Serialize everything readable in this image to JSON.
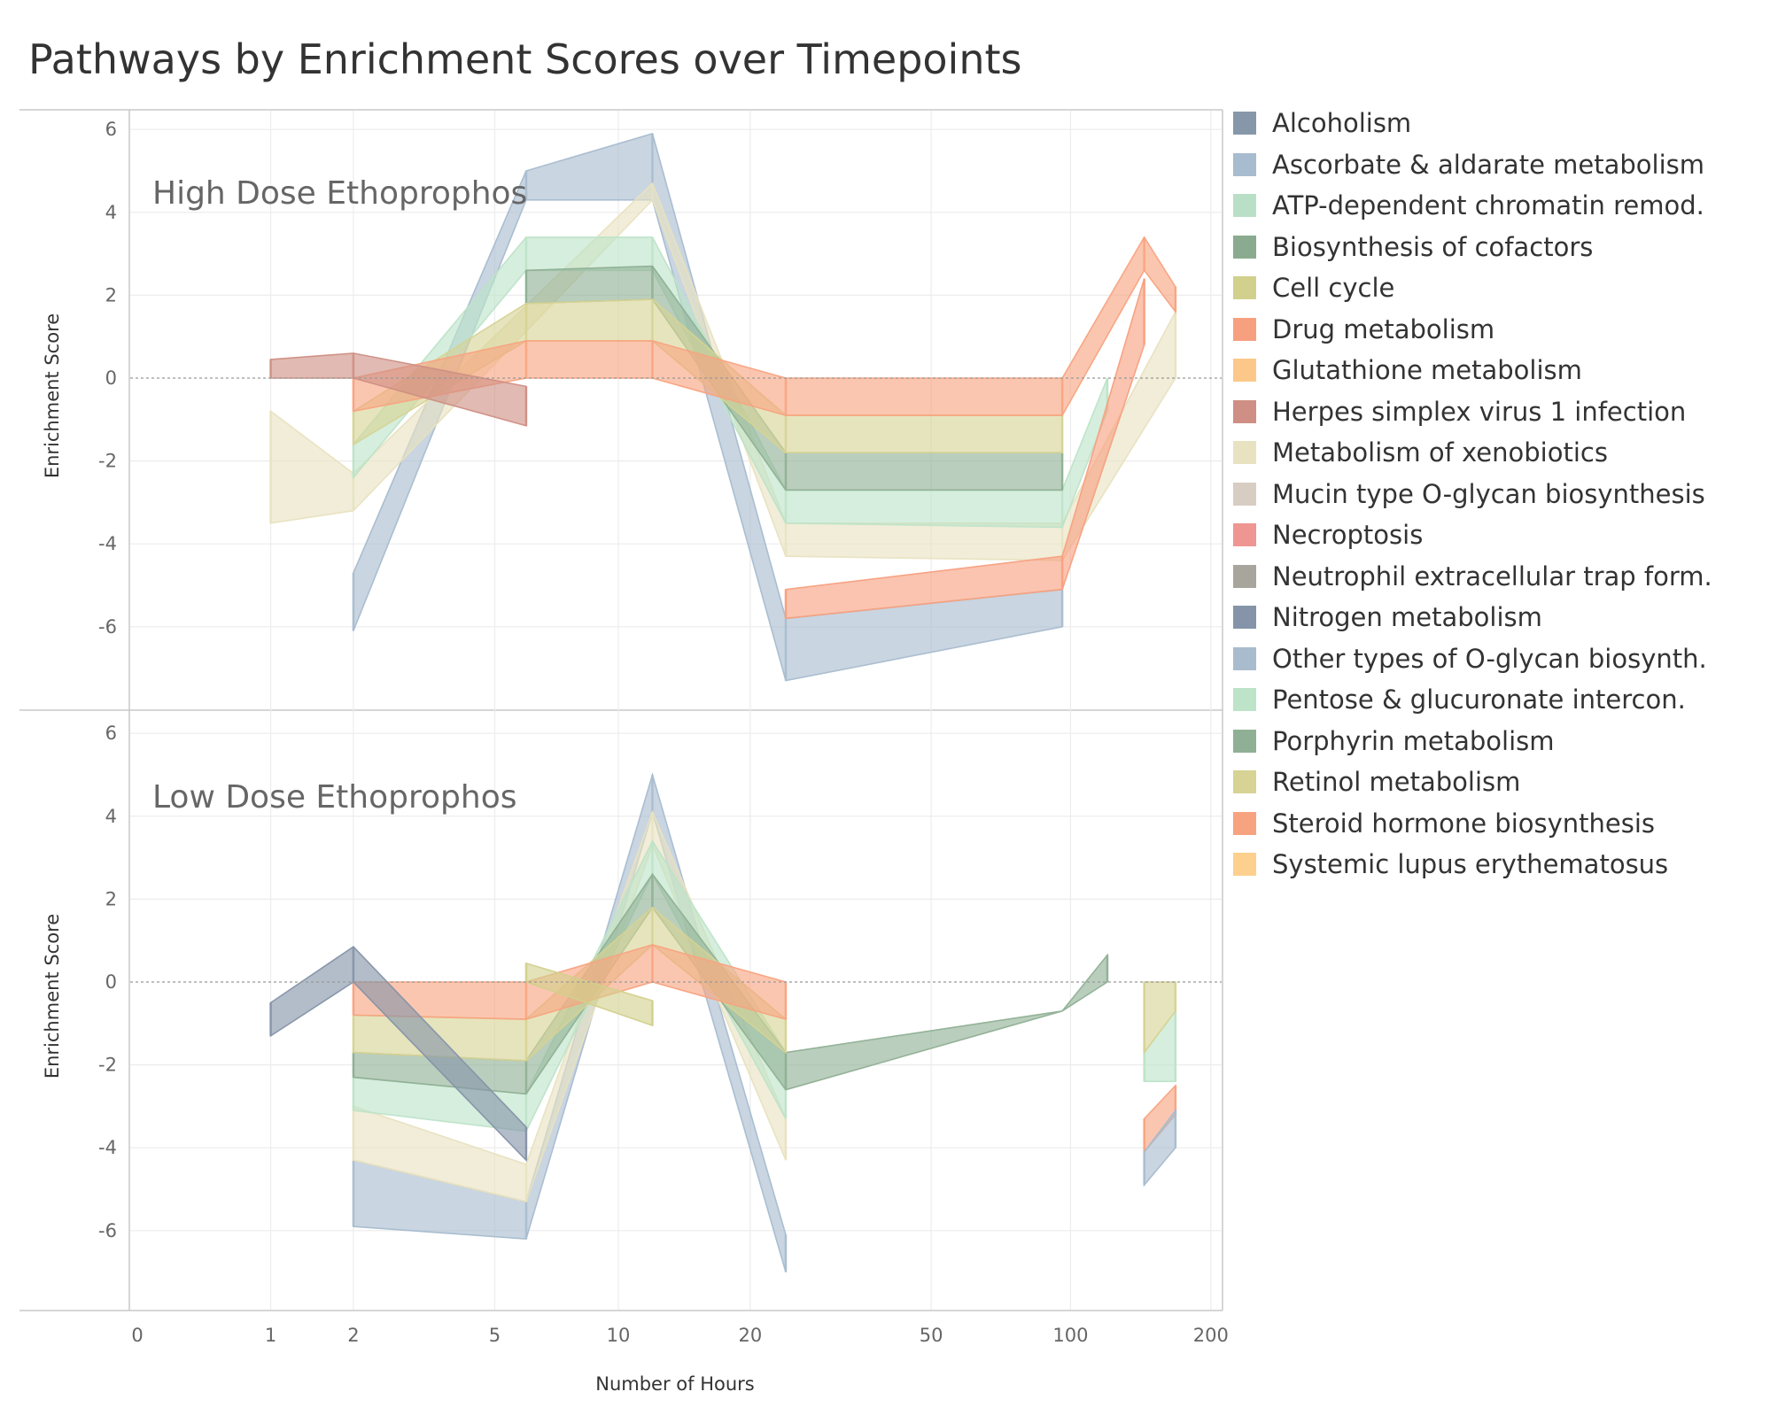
{
  "chart_data": {
    "type": "area",
    "title": "Pathways by Enrichment Scores over Timepoints",
    "xlabel": "Number of Hours",
    "ylabel": "Enrichment Score",
    "x_ticks": [
      "0",
      "1",
      "2",
      "5",
      "10",
      "20",
      "50",
      "100",
      "200"
    ],
    "y_ticks": [
      "6",
      "4",
      "2",
      "0",
      "-2",
      "-4",
      "-6"
    ],
    "ylim": [
      -7.8,
      6.0
    ],
    "legend": [
      {
        "name": "Alcoholism",
        "color": "#8797aa"
      },
      {
        "name": "Ascorbate & aldarate metabolism",
        "color": "#a8bccf"
      },
      {
        "name": "ATP-dependent chromatin remod.",
        "color": "#b9e0c7"
      },
      {
        "name": "Biosynthesis of cofactors",
        "color": "#8aab8f"
      },
      {
        "name": "Cell cycle",
        "color": "#d2d08d"
      },
      {
        "name": "Drug metabolism",
        "color": "#f7a07f"
      },
      {
        "name": "Glutathione metabolism",
        "color": "#fcc889"
      },
      {
        "name": "Herpes simplex virus 1 infection",
        "color": "#cf8f84"
      },
      {
        "name": "Metabolism of xenobiotics",
        "color": "#e8e2c0"
      },
      {
        "name": "Mucin type O-glycan biosynthesis",
        "color": "#d8cdc2"
      },
      {
        "name": "Necroptosis",
        "color": "#ef9692"
      },
      {
        "name": "Neutrophil extracellular trap form.",
        "color": "#a8a59d"
      },
      {
        "name": "Nitrogen metabolism",
        "color": "#8594a8"
      },
      {
        "name": "Other types of O-glycan biosynth.",
        "color": "#a9bccd"
      },
      {
        "name": "Pentose & glucuronate intercon.",
        "color": "#bde3c8"
      },
      {
        "name": "Porphyrin metabolism",
        "color": "#8fb095"
      },
      {
        "name": "Retinol metabolism",
        "color": "#d6d394"
      },
      {
        "name": "Steroid hormone biosynthesis",
        "color": "#f8a37f"
      },
      {
        "name": "Systemic lupus erythematosus",
        "color": "#fdd08e"
      }
    ],
    "panels": [
      {
        "name": "High Dose Ethoprophos",
        "series": [
          {
            "name": "Ascorbate & aldarate metabolism",
            "color": "#a8bccf",
            "x": [
              2,
              6,
              12,
              24,
              96
            ],
            "upper": [
              -4.7,
              5.0,
              5.9,
              -5.8,
              -5.1
            ],
            "lower": [
              -6.1,
              4.3,
              4.3,
              -7.3,
              -6.0
            ]
          },
          {
            "name": "Metabolism of xenobiotics",
            "color": "#e8e2c0",
            "x": [
              1,
              2,
              12,
              24,
              96,
              168
            ],
            "upper": [
              -0.8,
              -2.3,
              4.7,
              -3.5,
              -3.5,
              1.6
            ],
            "lower": [
              -3.5,
              -3.2,
              4.3,
              -4.3,
              -4.4,
              0.0
            ]
          },
          {
            "name": "Pentose & glucuronate intercon.",
            "color": "#bde3c8",
            "x": [
              2,
              6,
              12,
              24,
              96,
              120
            ],
            "upper": [
              -1.6,
              3.4,
              3.4,
              -2.7,
              -2.7,
              0.0
            ],
            "lower": [
              -2.4,
              2.6,
              2.6,
              -3.5,
              -3.6,
              -0.8
            ]
          },
          {
            "name": "Porphyrin metabolism",
            "color": "#8fb095",
            "x": [
              6,
              12,
              24,
              96
            ],
            "upper": [
              2.6,
              2.7,
              -1.8,
              -1.8
            ],
            "lower": [
              1.8,
              1.9,
              -2.7,
              -2.7
            ]
          },
          {
            "name": "Retinol metabolism",
            "color": "#d6d394",
            "x": [
              2,
              6,
              12,
              24,
              96
            ],
            "upper": [
              -0.8,
              1.8,
              1.9,
              -0.9,
              -0.9
            ],
            "lower": [
              -1.6,
              0.9,
              0.9,
              -1.8,
              -1.8
            ]
          },
          {
            "name": "Steroid hormone biosynthesis",
            "color": "#f8a37f",
            "x": [
              2,
              6,
              12,
              24,
              96,
              144,
              168
            ],
            "upper": [
              0.0,
              0.9,
              0.9,
              0.0,
              0.0,
              3.4,
              2.2
            ],
            "lower": [
              -0.8,
              0.0,
              0.0,
              -0.9,
              -0.9,
              2.6,
              1.6
            ]
          },
          {
            "name": "Drug metabolism",
            "color": "#f7a07f",
            "x": [
              24,
              96,
              144
            ],
            "upper": [
              -5.1,
              -4.3,
              2.4
            ],
            "lower": [
              -5.8,
              -5.1,
              0.8
            ]
          },
          {
            "name": "Herpes simplex virus 1 infection",
            "color": "#cf8f84",
            "x": [
              1,
              2,
              6
            ],
            "upper": [
              0.45,
              0.6,
              -0.2
            ],
            "lower": [
              0.0,
              0.0,
              -1.15
            ]
          }
        ]
      },
      {
        "name": "Low Dose Ethoprophos",
        "series": [
          {
            "name": "Ascorbate & aldarate metabolism",
            "color": "#a8bccf",
            "x": [
              2,
              6,
              12,
              24
            ],
            "upper": [
              -4.3,
              -5.3,
              5.0,
              -6.1
            ],
            "lower": [
              -5.9,
              -6.2,
              4.1,
              -7.0
            ]
          },
          {
            "name": "Metabolism of xenobiotics",
            "color": "#e8e2c0",
            "x": [
              2,
              6,
              12,
              24
            ],
            "upper": [
              -3.0,
              -4.4,
              4.1,
              -3.3
            ],
            "lower": [
              -4.3,
              -5.3,
              3.3,
              -4.3
            ]
          },
          {
            "name": "Pentose & glucuronate intercon.",
            "color": "#bde3c8",
            "x": [
              2,
              6,
              12,
              24
            ],
            "upper": [
              -2.3,
              -2.7,
              3.4,
              -1.7
            ],
            "lower": [
              -3.1,
              -3.6,
              2.6,
              -3.3
            ]
          },
          {
            "name": "Porphyrin metabolism",
            "color": "#8fb095",
            "x": [
              2,
              6,
              12,
              24,
              96,
              120
            ],
            "upper": [
              -1.7,
              -1.9,
              2.6,
              -1.7,
              -0.7,
              0.65
            ],
            "lower": [
              -2.3,
              -2.7,
              1.8,
              -2.6,
              -0.7,
              0.0
            ]
          },
          {
            "name": "Retinol metabolism",
            "color": "#d6d394",
            "x": [
              2,
              6,
              12,
              24
            ],
            "upper": [
              -0.8,
              -0.9,
              1.8,
              -0.9
            ],
            "lower": [
              -1.7,
              -1.9,
              0.9,
              -1.7
            ]
          },
          {
            "name": "Steroid hormone biosynthesis",
            "color": "#f8a37f",
            "x": [
              2,
              6,
              12,
              24
            ],
            "upper": [
              0.0,
              0.0,
              0.9,
              0.0
            ],
            "lower": [
              -0.8,
              -0.9,
              0.0,
              -0.9
            ]
          },
          {
            "name": "Cell cycle",
            "color": "#d2d08d",
            "x": [
              6,
              12
            ],
            "upper": [
              0.45,
              -0.45
            ],
            "lower": [
              0.0,
              -1.05
            ]
          },
          {
            "name": "Nitrogen metabolism",
            "color": "#8594a8",
            "x": [
              1,
              2,
              6
            ],
            "upper": [
              -0.5,
              0.85,
              -3.5
            ],
            "lower": [
              -1.3,
              0.0,
              -4.3
            ]
          },
          {
            "name": "Pentose & glucuronate intercon.",
            "color": "#bde3c8",
            "x": [
              144,
              168
            ],
            "upper": [
              -1.7,
              -0.7
            ],
            "lower": [
              -2.4,
              -2.4
            ]
          },
          {
            "name": "Retinol metabolism",
            "color": "#d6d394",
            "x": [
              144,
              168
            ],
            "upper": [
              0.0,
              0.0
            ],
            "lower": [
              -1.7,
              -0.7
            ]
          },
          {
            "name": "Steroid hormone biosynthesis",
            "color": "#f8a37f",
            "x": [
              144,
              168
            ],
            "upper": [
              -3.3,
              -2.5
            ],
            "lower": [
              -4.1,
              -3.2
            ]
          },
          {
            "name": "Ascorbate & aldarate metabolism",
            "color": "#a8bccf",
            "x": [
              144,
              168
            ],
            "upper": [
              -4.1,
              -3.1
            ],
            "lower": [
              -4.9,
              -4.0
            ]
          }
        ]
      }
    ]
  }
}
